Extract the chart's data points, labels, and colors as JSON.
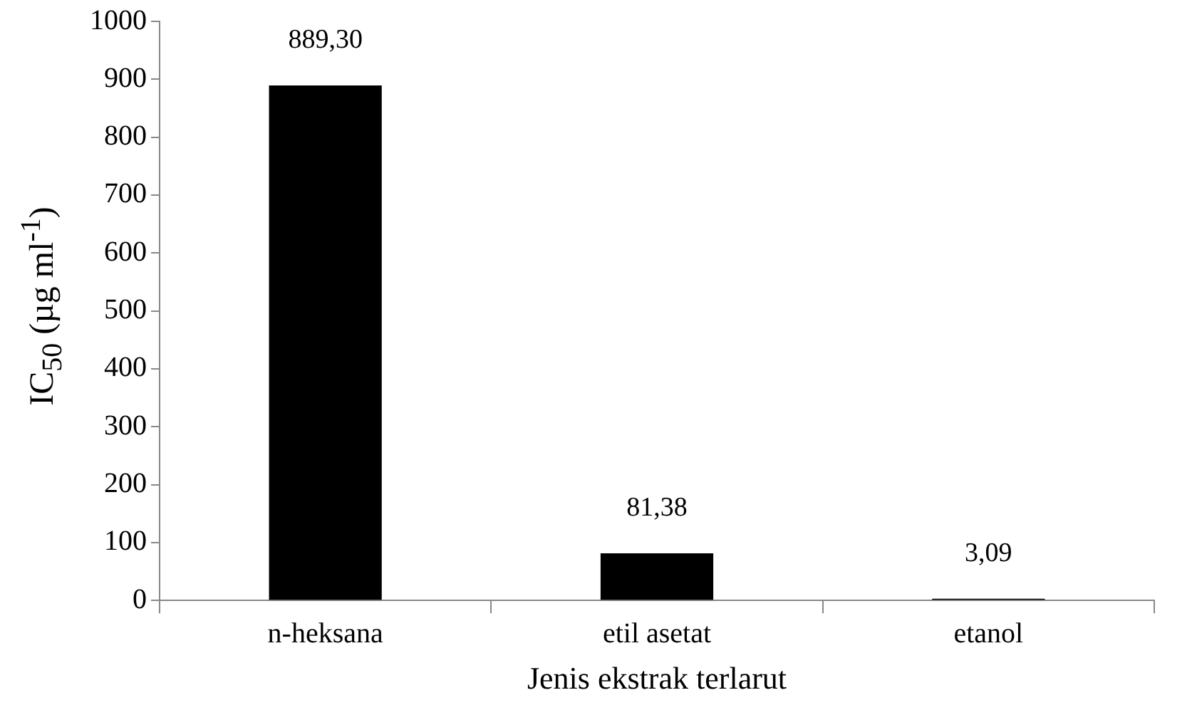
{
  "chart_data": {
    "type": "bar",
    "xlabel": "Jenis ekstrak terlarut",
    "ylabel": "IC$_{50}$  (µg ml$^{-1}$)",
    "categories": [
      "n-heksana",
      "etil asetat",
      "etanol"
    ],
    "values": [
      889.3,
      81.38,
      3.09
    ],
    "value_labels": [
      "889,30",
      "81,38",
      "3,09"
    ],
    "color": "#000000",
    "ylim": [
      0,
      1000
    ],
    "yticks": [
      0,
      100,
      200,
      300,
      400,
      500,
      600,
      700,
      800,
      900,
      1000
    ],
    "grid": false,
    "legend": false
  }
}
